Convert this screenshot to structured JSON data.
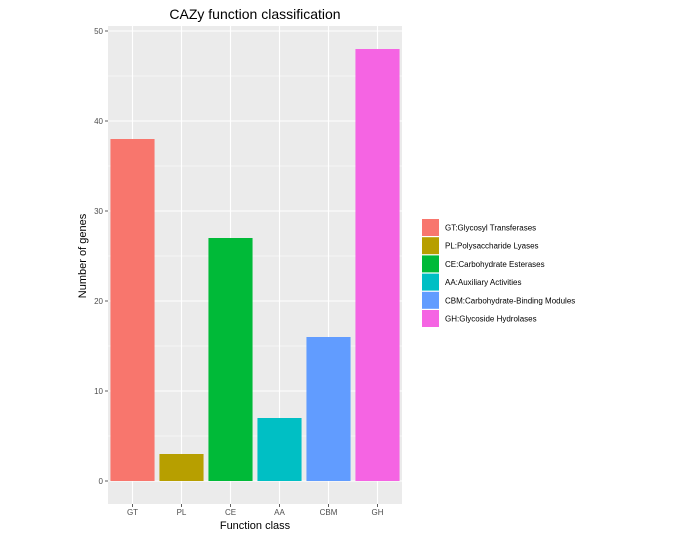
{
  "chart_data": {
    "type": "bar",
    "title": "CAZy function classification",
    "xlabel": "Function class",
    "ylabel": "Number of genes",
    "categories": [
      "GT",
      "PL",
      "CE",
      "AA",
      "CBM",
      "GH"
    ],
    "values": [
      38,
      3,
      27,
      7,
      16,
      48
    ],
    "colors": [
      "#F8766D",
      "#B79F00",
      "#00BA38",
      "#00BFC4",
      "#619CFF",
      "#F564E3"
    ],
    "ylim": [
      0,
      50
    ],
    "yticks": [
      0,
      10,
      20,
      30,
      40,
      50
    ],
    "grid": true,
    "legend_position": "right",
    "legend": [
      "GT:Glycosyl Transferases",
      "PL:Polysaccharide Lyases",
      "CE:Carbohydrate Esterases",
      "AA:Auxiliary Activities",
      "CBM:Carbohydrate-Binding Modules",
      "GH:Glycoside Hydrolases"
    ]
  }
}
